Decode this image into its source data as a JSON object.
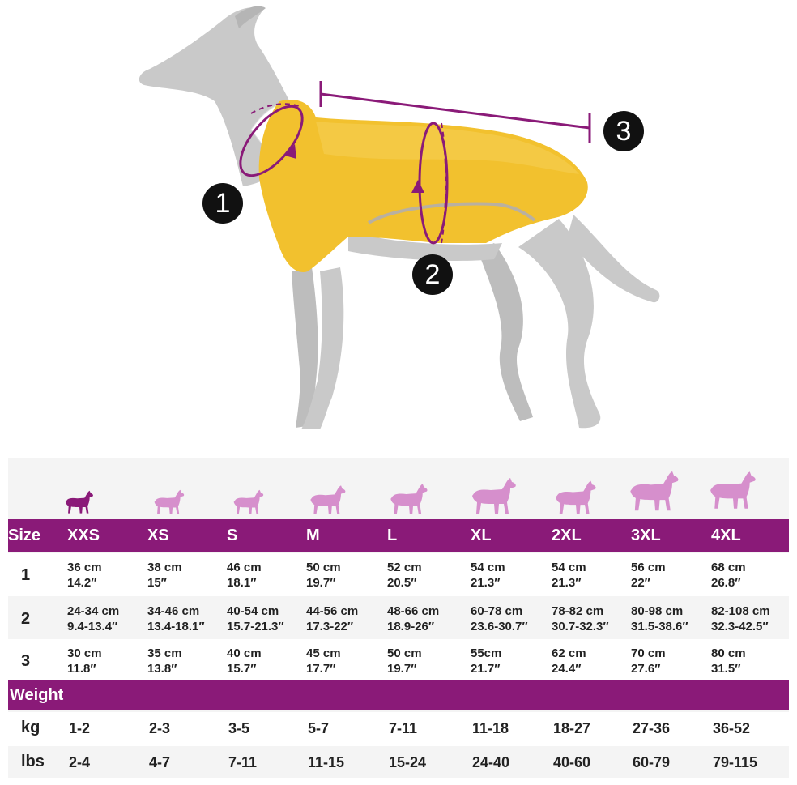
{
  "markers": [
    "1",
    "2",
    "3"
  ],
  "size_table": {
    "header_label": "Size",
    "sizes": [
      "XXS",
      "XS",
      "S",
      "M",
      "L",
      "XL",
      "2XL",
      "3XL",
      "4XL"
    ],
    "rows": [
      {
        "label": "1",
        "cells": [
          [
            "36 cm",
            "14.2″"
          ],
          [
            "38 cm",
            "15″"
          ],
          [
            "46 cm",
            "18.1″"
          ],
          [
            "50 cm",
            "19.7″"
          ],
          [
            "52 cm",
            "20.5″"
          ],
          [
            "54 cm",
            "21.3″"
          ],
          [
            "54 cm",
            "21.3″"
          ],
          [
            "56 cm",
            "22″"
          ],
          [
            "68 cm",
            "26.8″"
          ]
        ]
      },
      {
        "label": "2",
        "cells": [
          [
            "24-34 cm",
            "9.4-13.4″"
          ],
          [
            "34-46 cm",
            "13.4-18.1″"
          ],
          [
            "40-54 cm",
            "15.7-21.3″"
          ],
          [
            "44-56 cm",
            "17.3-22″"
          ],
          [
            "48-66 cm",
            "18.9-26″"
          ],
          [
            "60-78 cm",
            "23.6-30.7″"
          ],
          [
            "78-82 cm",
            "30.7-32.3″"
          ],
          [
            "80-98 cm",
            "31.5-38.6″"
          ],
          [
            "82-108 cm",
            "32.3-42.5″"
          ]
        ]
      },
      {
        "label": "3",
        "cells": [
          [
            "30 cm",
            "11.8″"
          ],
          [
            "35 cm",
            "13.8″"
          ],
          [
            "40 cm",
            "15.7″"
          ],
          [
            "45 cm",
            "17.7″"
          ],
          [
            "50 cm",
            "19.7″"
          ],
          [
            "55cm",
            "21.7″"
          ],
          [
            "62 cm",
            "24.4″"
          ],
          [
            "70 cm",
            "27.6″"
          ],
          [
            "80 cm",
            "31.5″"
          ]
        ]
      }
    ]
  },
  "weight_table": {
    "header_label": "Weight",
    "rows": [
      {
        "label": "kg",
        "values": [
          "1-2",
          "2-3",
          "3-5",
          "5-7",
          "7-11",
          "11-18",
          "18-27",
          "27-36",
          "36-52"
        ]
      },
      {
        "label": "lbs",
        "values": [
          "2-4",
          "4-7",
          "7-11",
          "11-15",
          "15-24",
          "24-40",
          "40-60",
          "60-79",
          "79-115"
        ]
      }
    ]
  },
  "colors": {
    "accent_purple": "#8a1a78",
    "dog_icon_pink": "#d68fcc",
    "coat_yellow": "#f2c12e",
    "dog_gray": "#c8c8c8"
  }
}
